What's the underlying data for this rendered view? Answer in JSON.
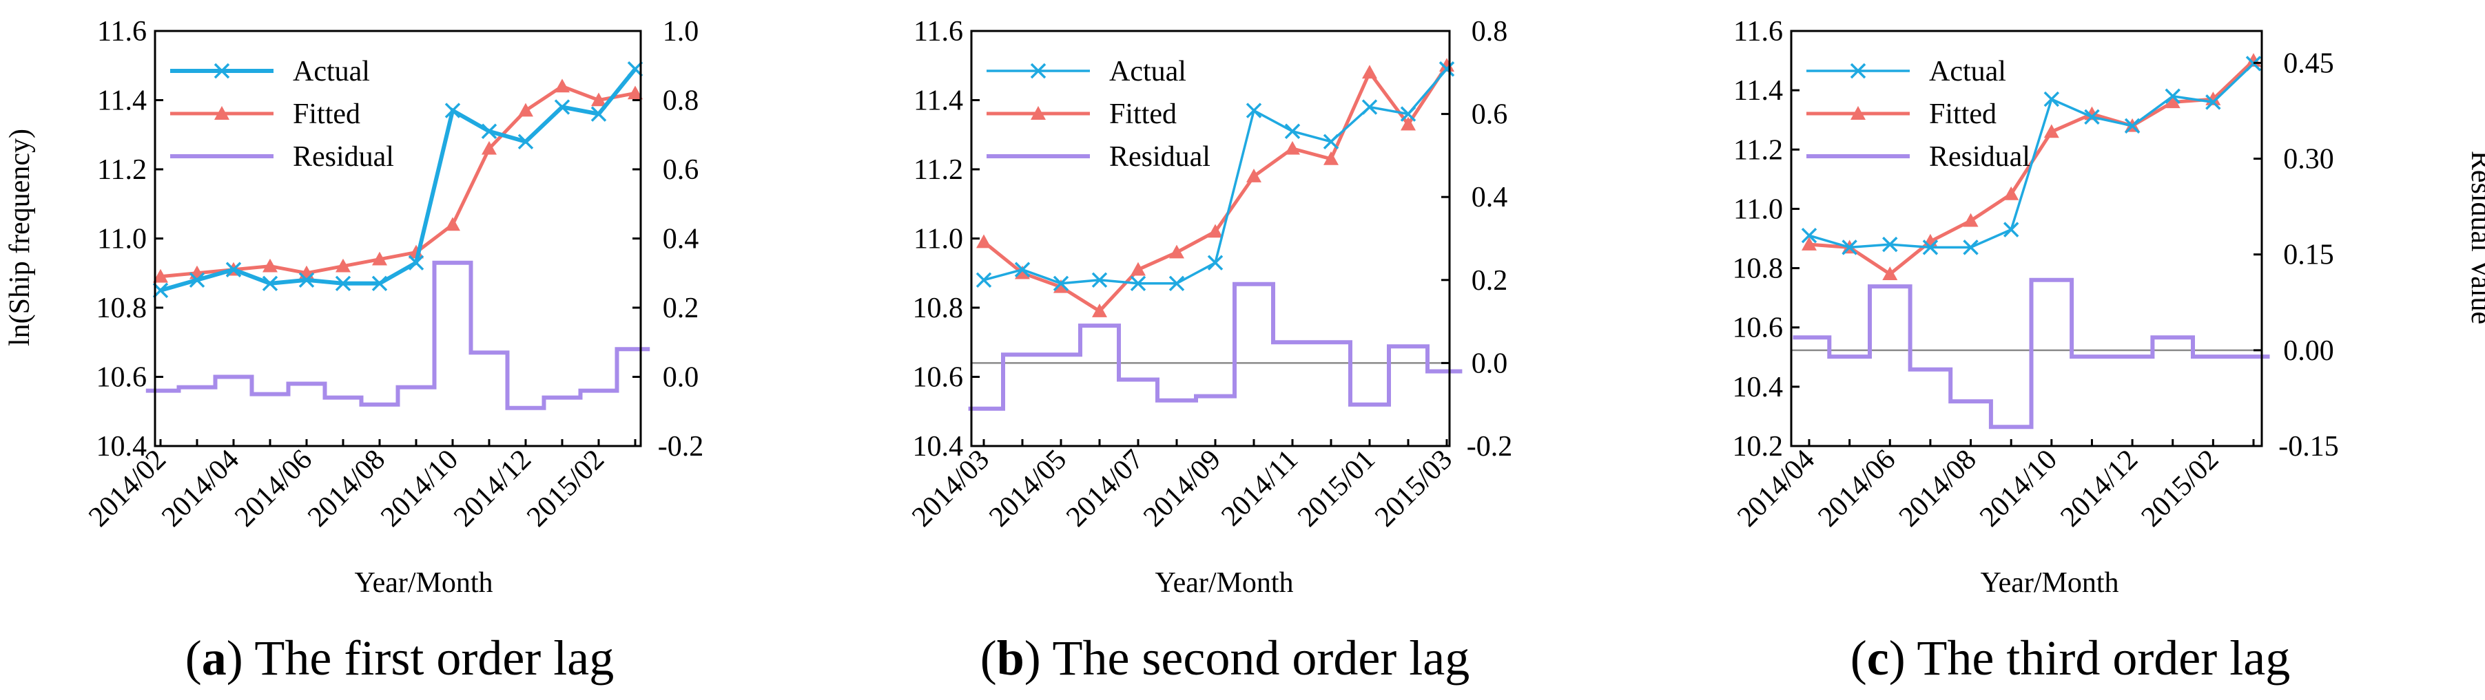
{
  "chart_data": [
    {
      "type": "line",
      "panel_letter": "a",
      "caption_open": "(",
      "caption_close": ") The first order lag",
      "xlabel": "Year/Month",
      "ylabel_left": "ln(Ship frequency)",
      "ylabel_right": "",
      "left_ylim": [
        10.4,
        11.6
      ],
      "left_yticks": [
        10.4,
        10.6,
        10.8,
        11.0,
        11.2,
        11.4,
        11.6
      ],
      "left_tick_labels": [
        "10.4",
        "10.6",
        "10.8",
        "11.0",
        "11.2",
        "11.4",
        "11.6"
      ],
      "right_ylim": [
        -0.2,
        1.0
      ],
      "right_yticks": [
        -0.2,
        0.0,
        0.2,
        0.4,
        0.6,
        0.8,
        1.0
      ],
      "right_tick_labels": [
        "-0.2",
        "0.0",
        "0.2",
        "0.4",
        "0.6",
        "0.8",
        "1.0"
      ],
      "categories": [
        "2014/02",
        "2014/03",
        "2014/04",
        "2014/05",
        "2014/06",
        "2014/07",
        "2014/08",
        "2014/09",
        "2014/10",
        "2014/11",
        "2014/12",
        "2015/01",
        "2015/02",
        "2015/03"
      ],
      "x_tick_labels": [
        "2014/02",
        "2014/04",
        "2014/06",
        "2014/08",
        "2014/10",
        "2014/12",
        "2015/02"
      ],
      "residual_zero_line": false,
      "actual_thick": true,
      "series": [
        {
          "name": "Actual",
          "axis": "left",
          "values": [
            10.85,
            10.88,
            10.91,
            10.87,
            10.88,
            10.87,
            10.87,
            10.93,
            11.37,
            11.31,
            11.28,
            11.38,
            11.36,
            11.49
          ]
        },
        {
          "name": "Fitted",
          "axis": "left",
          "values": [
            10.89,
            10.9,
            10.91,
            10.92,
            10.9,
            10.92,
            10.94,
            10.96,
            11.04,
            11.26,
            11.37,
            11.44,
            11.4,
            11.42
          ]
        },
        {
          "name": "Residual",
          "axis": "right",
          "values": [
            -0.04,
            -0.03,
            0.0,
            -0.05,
            -0.02,
            -0.06,
            -0.08,
            -0.03,
            0.33,
            0.07,
            -0.09,
            -0.06,
            -0.04,
            0.08
          ]
        }
      ]
    },
    {
      "type": "line",
      "panel_letter": "b",
      "caption_open": "(",
      "caption_close": ") The second order lag",
      "xlabel": "Year/Month",
      "ylabel_left": "",
      "ylabel_right": "",
      "left_ylim": [
        10.4,
        11.6
      ],
      "left_yticks": [
        10.4,
        10.6,
        10.8,
        11.0,
        11.2,
        11.4,
        11.6
      ],
      "left_tick_labels": [
        "10.4",
        "10.6",
        "10.8",
        "11.0",
        "11.2",
        "11.4",
        "11.6"
      ],
      "right_ylim": [
        -0.2,
        0.8
      ],
      "right_yticks": [
        -0.2,
        0.0,
        0.2,
        0.4,
        0.6,
        0.8
      ],
      "right_tick_labels": [
        "-0.2",
        "0.0",
        "0.2",
        "0.4",
        "0.6",
        "0.8"
      ],
      "categories": [
        "2014/03",
        "2014/04",
        "2014/05",
        "2014/06",
        "2014/07",
        "2014/08",
        "2014/09",
        "2014/10",
        "2014/11",
        "2014/12",
        "2015/01",
        "2015/02",
        "2015/03"
      ],
      "x_tick_labels": [
        "2014/03",
        "2014/05",
        "2014/07",
        "2014/09",
        "2014/11",
        "2015/01",
        "2015/03"
      ],
      "residual_zero_line": true,
      "actual_thick": false,
      "series": [
        {
          "name": "Actual",
          "axis": "left",
          "values": [
            10.88,
            10.91,
            10.87,
            10.88,
            10.87,
            10.87,
            10.93,
            11.37,
            11.31,
            11.28,
            11.38,
            11.36,
            11.49
          ]
        },
        {
          "name": "Fitted",
          "axis": "left",
          "values": [
            10.99,
            10.9,
            10.86,
            10.79,
            10.91,
            10.96,
            11.02,
            11.18,
            11.26,
            11.23,
            11.48,
            11.33,
            11.5
          ]
        },
        {
          "name": "Residual",
          "axis": "right",
          "values": [
            -0.11,
            0.02,
            0.02,
            0.09,
            -0.04,
            -0.09,
            -0.08,
            0.19,
            0.05,
            0.05,
            -0.1,
            0.04,
            -0.02
          ]
        }
      ]
    },
    {
      "type": "line",
      "panel_letter": "c",
      "caption_open": "(",
      "caption_close": ") The third order lag",
      "xlabel": "Year/Month",
      "ylabel_left": "",
      "ylabel_right": "Residual Value",
      "left_ylim": [
        10.2,
        11.6
      ],
      "left_yticks": [
        10.2,
        10.4,
        10.6,
        10.8,
        11.0,
        11.2,
        11.4,
        11.6
      ],
      "left_tick_labels": [
        "10.2",
        "10.4",
        "10.6",
        "10.8",
        "11.0",
        "11.2",
        "11.4",
        "11.6"
      ],
      "right_ylim": [
        -0.15,
        0.5
      ],
      "right_yticks": [
        -0.15,
        0.0,
        0.15,
        0.3,
        0.45
      ],
      "right_tick_labels": [
        "-0.15",
        "0.00",
        "0.15",
        "0.30",
        "0.45"
      ],
      "categories": [
        "2014/04",
        "2014/05",
        "2014/06",
        "2014/07",
        "2014/08",
        "2014/09",
        "2014/10",
        "2014/11",
        "2014/12",
        "2015/01",
        "2015/02",
        "2015/03"
      ],
      "x_tick_labels": [
        "2014/04",
        "2014/06",
        "2014/08",
        "2014/10",
        "2014/12",
        "2015/02"
      ],
      "residual_zero_line": true,
      "actual_thick": false,
      "series": [
        {
          "name": "Actual",
          "axis": "left",
          "values": [
            10.91,
            10.87,
            10.88,
            10.87,
            10.87,
            10.93,
            11.37,
            11.31,
            11.28,
            11.38,
            11.36,
            11.49
          ]
        },
        {
          "name": "Fitted",
          "axis": "left",
          "values": [
            10.88,
            10.87,
            10.78,
            10.89,
            10.96,
            11.05,
            11.26,
            11.32,
            11.28,
            11.36,
            11.37,
            11.5
          ]
        },
        {
          "name": "Residual",
          "axis": "right",
          "values": [
            0.02,
            -0.01,
            0.1,
            -0.03,
            -0.08,
            -0.12,
            0.11,
            -0.01,
            -0.01,
            0.02,
            -0.01,
            -0.01
          ]
        }
      ]
    }
  ],
  "colors": {
    "actual": "#1FA9E1",
    "fitted": "#F0706A",
    "residual": "#A78BEA",
    "zero_line": "#8a8a8a",
    "axis": "#000000"
  }
}
